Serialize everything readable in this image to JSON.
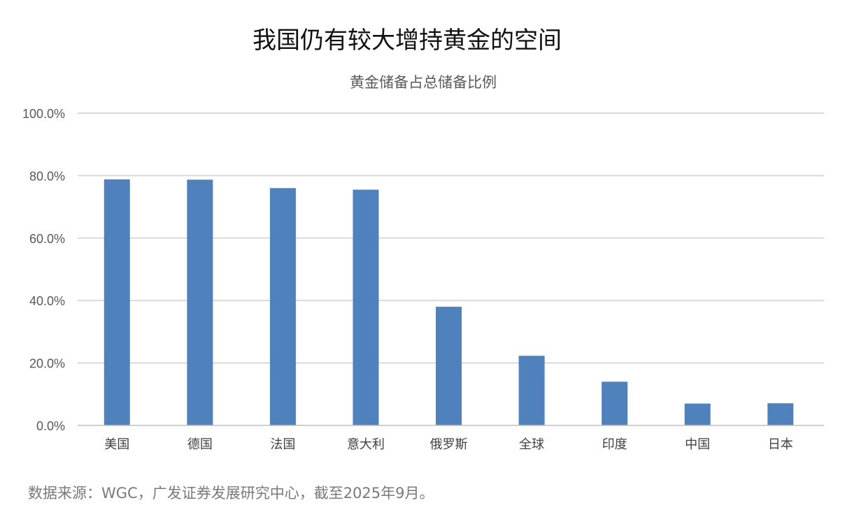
{
  "header": {
    "title": "我国仍有较大增持黄金的空间"
  },
  "chart_data": {
    "type": "bar",
    "title": "黄金储备占总储备比例",
    "xlabel": "",
    "ylabel": "",
    "categories": [
      "美国",
      "德国",
      "法国",
      "意大利",
      "俄罗斯",
      "全球",
      "印度",
      "中国",
      "日本"
    ],
    "series": [
      {
        "values": [
          78.8,
          78.7,
          76.0,
          75.5,
          38.0,
          22.3,
          14.0,
          7.0,
          7.1
        ],
        "color": "#4f81bd"
      }
    ],
    "ylim": [
      0,
      100
    ],
    "yticks": [
      "0.0%",
      "20.0%",
      "40.0%",
      "60.0%",
      "80.0%",
      "100.0%"
    ],
    "grid": true,
    "legend": "none",
    "colors": {
      "bar": "#4f81bd",
      "grid": "#d9d9d9",
      "axis": "#bfbfbf",
      "tick_text": "#595959"
    }
  },
  "footer": {
    "source": "数据来源：WGC，广发证券发展研究中心，截至2025年9月。"
  }
}
